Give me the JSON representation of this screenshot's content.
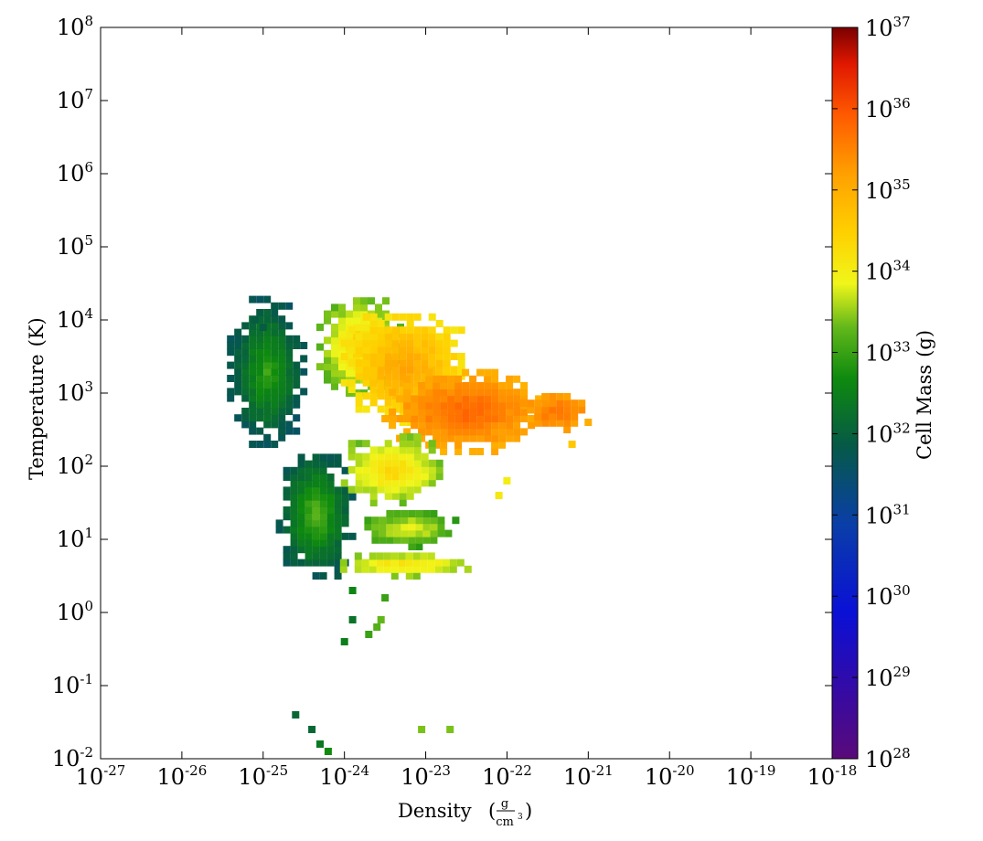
{
  "chart_data": {
    "type": "heatmap",
    "title": "",
    "x_axis": {
      "label": "Density",
      "unit_numerator": "g",
      "unit_denominator": "cm",
      "unit_denominator_power": "3",
      "scale": "log",
      "lim": [
        1e-27,
        1e-18
      ],
      "ticks": [
        {
          "base": "10",
          "exp": "-27"
        },
        {
          "base": "10",
          "exp": "-26"
        },
        {
          "base": "10",
          "exp": "-25"
        },
        {
          "base": "10",
          "exp": "-24"
        },
        {
          "base": "10",
          "exp": "-23"
        },
        {
          "base": "10",
          "exp": "-22"
        },
        {
          "base": "10",
          "exp": "-21"
        },
        {
          "base": "10",
          "exp": "-20"
        },
        {
          "base": "10",
          "exp": "-19"
        },
        {
          "base": "10",
          "exp": "-18"
        }
      ]
    },
    "y_axis": {
      "label": "Temperature",
      "unit": "(K)",
      "scale": "log",
      "lim": [
        0.01,
        100000000.0
      ],
      "ticks": [
        {
          "base": "10",
          "exp": "-2"
        },
        {
          "base": "10",
          "exp": "-1"
        },
        {
          "base": "10",
          "exp": "0"
        },
        {
          "base": "10",
          "exp": "1"
        },
        {
          "base": "10",
          "exp": "2"
        },
        {
          "base": "10",
          "exp": "3"
        },
        {
          "base": "10",
          "exp": "4"
        },
        {
          "base": "10",
          "exp": "5"
        },
        {
          "base": "10",
          "exp": "6"
        },
        {
          "base": "10",
          "exp": "7"
        },
        {
          "base": "10",
          "exp": "8"
        }
      ]
    },
    "colorbar": {
      "label": "Cell Mass",
      "unit": "(g)",
      "scale": "log",
      "lim": [
        1e+28,
        1e+37
      ],
      "colormap": "rainbow",
      "ticks": [
        {
          "base": "10",
          "exp": "28"
        },
        {
          "base": "10",
          "exp": "29"
        },
        {
          "base": "10",
          "exp": "30"
        },
        {
          "base": "10",
          "exp": "31"
        },
        {
          "base": "10",
          "exp": "32"
        },
        {
          "base": "10",
          "exp": "33"
        },
        {
          "base": "10",
          "exp": "34"
        },
        {
          "base": "10",
          "exp": "35"
        },
        {
          "base": "10",
          "exp": "36"
        },
        {
          "base": "10",
          "exp": "37"
        }
      ]
    },
    "grid": false,
    "log10_bins_description": "regions of occupied log10(density), log10(temperature) bins with log10(cell mass) values",
    "regions": [
      {
        "x": [
          -25.4,
          -24.5
        ],
        "y": [
          2.3,
          4.3
        ],
        "mass": [
          31.7,
          33.0
        ]
      },
      {
        "x": [
          -24.8,
          -23.9
        ],
        "y": [
          0.5,
          2.2
        ],
        "mass": [
          31.8,
          33.3
        ]
      },
      {
        "x": [
          -24.3,
          -23.3
        ],
        "y": [
          3.0,
          4.3
        ],
        "mass": [
          33.3,
          34.6
        ]
      },
      {
        "x": [
          -24.0,
          -22.5
        ],
        "y": [
          2.6,
          4.1
        ],
        "mass": [
          34.2,
          35.2
        ]
      },
      {
        "x": [
          -23.5,
          -21.5
        ],
        "y": [
          2.2,
          3.3
        ],
        "mass": [
          35.0,
          35.9
        ]
      },
      {
        "x": [
          -21.8,
          -21.0
        ],
        "y": [
          2.5,
          3.0
        ],
        "mass": [
          35.2,
          35.7
        ]
      },
      {
        "x": [
          -24.0,
          -22.8
        ],
        "y": [
          1.5,
          2.4
        ],
        "mass": [
          33.4,
          34.5
        ]
      },
      {
        "x": [
          -24.1,
          -22.4
        ],
        "y": [
          0.5,
          0.8
        ],
        "mass": [
          33.5,
          34.3
        ]
      },
      {
        "x": [
          -23.8,
          -22.6
        ],
        "y": [
          0.9,
          1.4
        ],
        "mass": [
          33.0,
          34.0
        ]
      }
    ],
    "outliers": [
      {
        "x": -25.1,
        "y": 4.0,
        "mass": 31.9
      },
      {
        "x": -25.0,
        "y": 3.9,
        "mass": 31.9
      },
      {
        "x": -24.6,
        "y": -1.4,
        "mass": 32.1
      },
      {
        "x": -24.4,
        "y": -1.6,
        "mass": 32.1
      },
      {
        "x": -24.3,
        "y": -1.8,
        "mass": 32.4
      },
      {
        "x": -24.2,
        "y": -1.9,
        "mass": 32.7
      },
      {
        "x": -24.0,
        "y": -0.4,
        "mass": 32.5
      },
      {
        "x": -23.9,
        "y": -0.1,
        "mass": 32.3
      },
      {
        "x": -23.7,
        "y": -0.3,
        "mass": 33.0
      },
      {
        "x": -23.6,
        "y": -0.2,
        "mass": 33.2
      },
      {
        "x": -23.55,
        "y": -0.1,
        "mass": 33.3
      },
      {
        "x": -23.05,
        "y": -1.6,
        "mass": 33.4
      },
      {
        "x": -22.7,
        "y": -1.6,
        "mass": 33.4
      },
      {
        "x": -22.1,
        "y": 1.6,
        "mass": 34.1
      },
      {
        "x": -22.0,
        "y": 1.8,
        "mass": 34.0
      },
      {
        "x": -21.2,
        "y": 2.3,
        "mass": 34.6
      },
      {
        "x": -21.0,
        "y": 2.6,
        "mass": 35.0
      },
      {
        "x": -23.5,
        "y": 0.2,
        "mass": 33.0
      },
      {
        "x": -23.9,
        "y": 0.3,
        "mass": 32.6
      }
    ]
  }
}
